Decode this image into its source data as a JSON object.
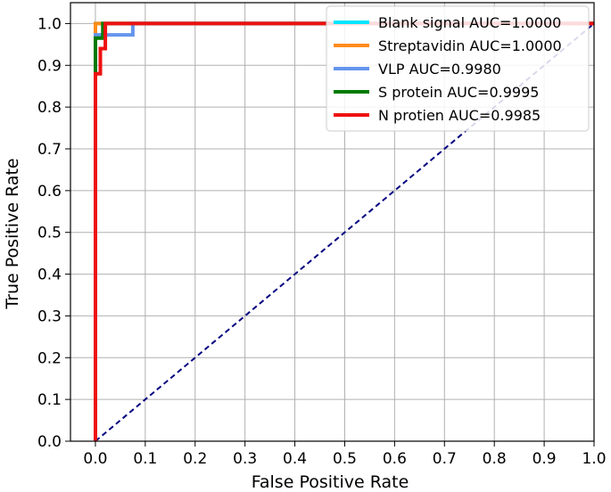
{
  "chart_data": {
    "type": "line",
    "xlabel": "False Positive Rate",
    "ylabel": "True Positive Rate",
    "xlim": [
      -0.05,
      1.0
    ],
    "ylim": [
      0.0,
      1.05
    ],
    "xticks": [
      "0.0",
      "0.1",
      "0.2",
      "0.3",
      "0.4",
      "0.5",
      "0.6",
      "0.7",
      "0.8",
      "0.9",
      "1.0"
    ],
    "yticks": [
      "0.0",
      "0.1",
      "0.2",
      "0.3",
      "0.4",
      "0.5",
      "0.6",
      "0.7",
      "0.8",
      "0.9",
      "1.0"
    ],
    "grid": true,
    "legend_position": "top-right",
    "series": [
      {
        "name": "Blank signal AUC=1.0000",
        "color": "#00e5ff",
        "x": [
          0.0,
          0.0,
          1.0
        ],
        "y": [
          0.0,
          1.0,
          1.0
        ]
      },
      {
        "name": "Streptavidin AUC=1.0000",
        "color": "#ff8c1a",
        "x": [
          0.0,
          0.0,
          1.0
        ],
        "y": [
          0.0,
          1.0,
          1.0
        ]
      },
      {
        "name": "VLP AUC=0.9980",
        "color": "#6495ed",
        "x": [
          0.0,
          0.0,
          0.075,
          0.075,
          1.0
        ],
        "y": [
          0.0,
          0.973,
          0.973,
          1.0,
          1.0
        ]
      },
      {
        "name": "S protein AUC=0.9995",
        "color": "#007a00",
        "x": [
          0.0,
          0.0,
          0.015,
          0.015,
          1.0
        ],
        "y": [
          0.0,
          0.965,
          0.965,
          1.0,
          1.0
        ]
      },
      {
        "name": "N protien AUC=0.9985",
        "color": "#ee1111",
        "x": [
          0.0,
          0.0,
          0.01,
          0.01,
          0.02,
          0.02,
          1.0
        ],
        "y": [
          0.0,
          0.88,
          0.88,
          0.94,
          0.94,
          1.0,
          1.0
        ]
      }
    ],
    "reference_line": {
      "color": "#000080",
      "style": "dashed",
      "x": [
        0.0,
        1.0
      ],
      "y": [
        0.0,
        1.0
      ]
    }
  }
}
